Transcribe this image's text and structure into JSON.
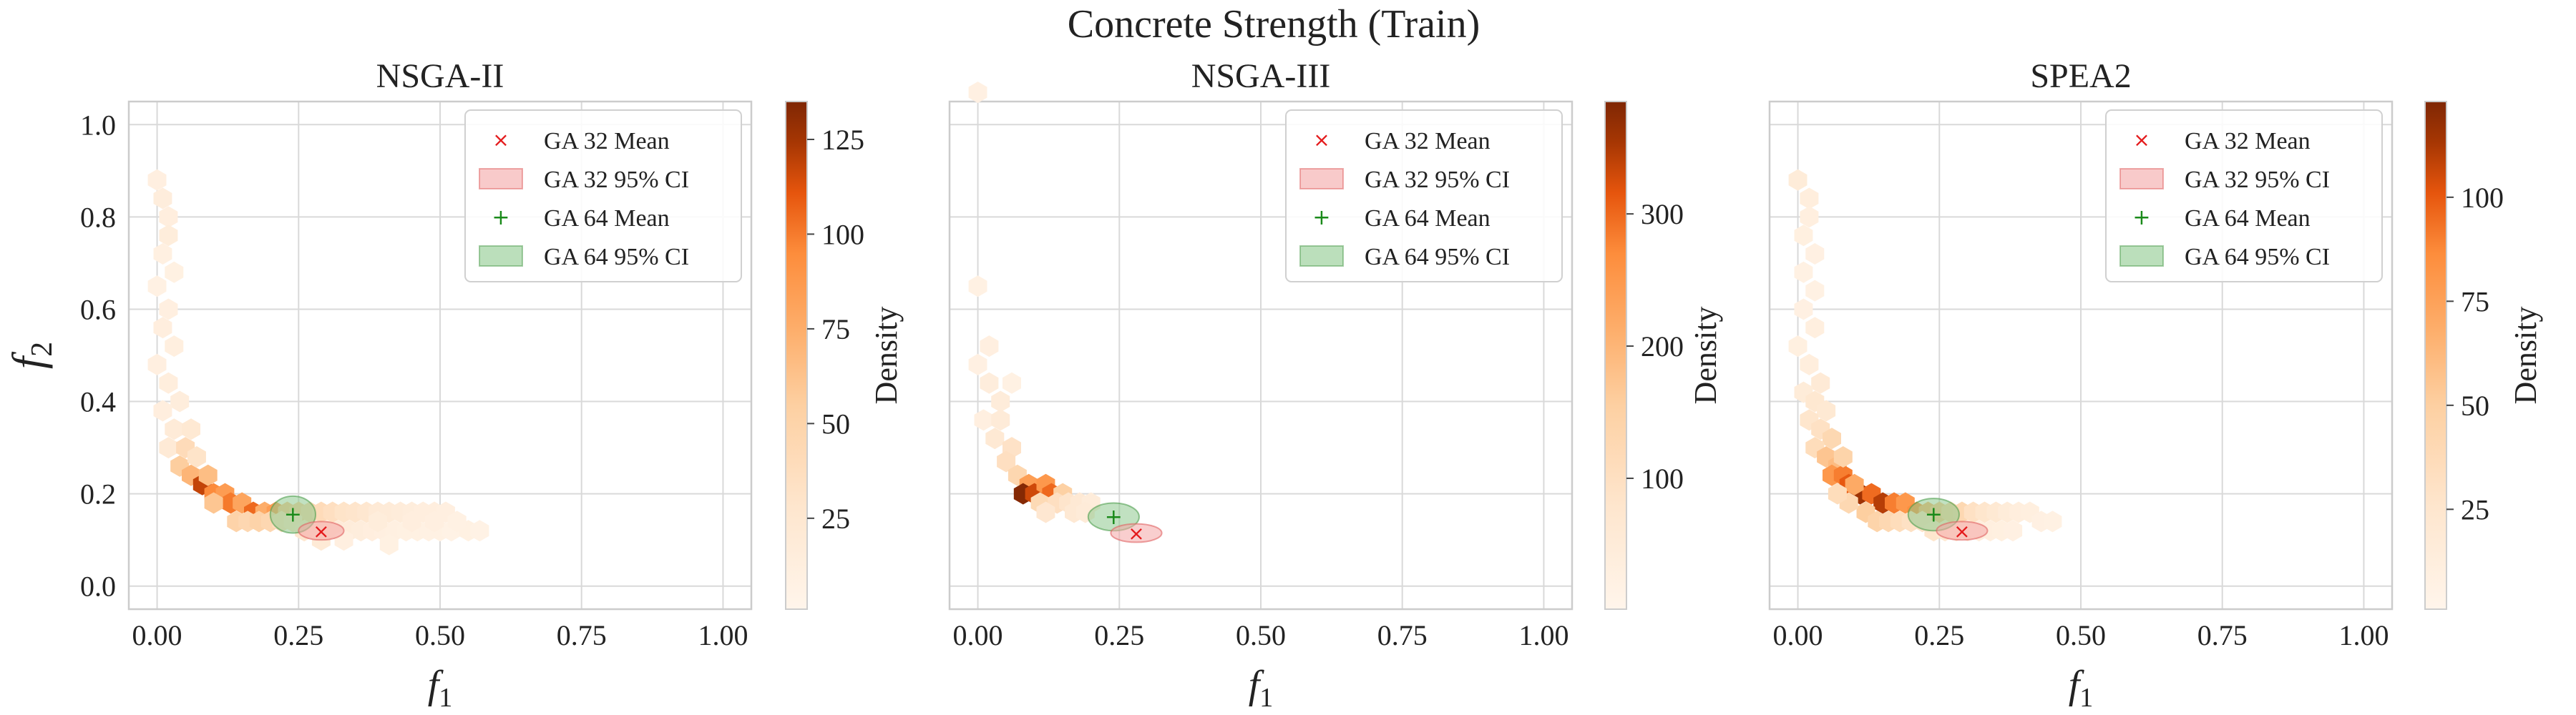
{
  "figure": {
    "title": "Concrete Strength (Train)"
  },
  "chart_data": [
    {
      "type": "hexbin",
      "title": "NSGA-II",
      "xlabel": "f1",
      "ylabel": "f2",
      "xlim": [
        -0.05,
        1.05
      ],
      "ylim": [
        -0.05,
        1.05
      ],
      "xticks": [
        "0.00",
        "0.25",
        "0.50",
        "0.75",
        "1.00"
      ],
      "yticks": [
        "0.0",
        "0.2",
        "0.4",
        "0.6",
        "0.8",
        "1.0"
      ],
      "grid": true,
      "colormap": "Oranges",
      "colorbar": {
        "label": "Density",
        "range": [
          1,
          135
        ],
        "ticks": [
          "25",
          "50",
          "75",
          "100",
          "125"
        ]
      },
      "legend": {
        "position": "top-right",
        "entries": [
          "GA 32 Mean",
          "GA 32 95% CI",
          "GA 64 Mean",
          "GA 64 95% CI"
        ]
      },
      "bins": [
        [
          0.0,
          0.88,
          10
        ],
        [
          0.01,
          0.84,
          14
        ],
        [
          0.02,
          0.8,
          12
        ],
        [
          0.02,
          0.76,
          15
        ],
        [
          0.01,
          0.72,
          9
        ],
        [
          0.03,
          0.68,
          8
        ],
        [
          0.0,
          0.65,
          7
        ],
        [
          0.02,
          0.6,
          10
        ],
        [
          0.01,
          0.56,
          12
        ],
        [
          0.03,
          0.52,
          11
        ],
        [
          0.0,
          0.48,
          10
        ],
        [
          0.02,
          0.44,
          13
        ],
        [
          0.04,
          0.4,
          14
        ],
        [
          0.01,
          0.38,
          12
        ],
        [
          0.03,
          0.34,
          18
        ],
        [
          0.06,
          0.34,
          22
        ],
        [
          0.02,
          0.3,
          20
        ],
        [
          0.05,
          0.3,
          40
        ],
        [
          0.04,
          0.26,
          55
        ],
        [
          0.06,
          0.24,
          70
        ],
        [
          0.08,
          0.22,
          118
        ],
        [
          0.1,
          0.2,
          95
        ],
        [
          0.12,
          0.2,
          85
        ],
        [
          0.13,
          0.18,
          100
        ],
        [
          0.15,
          0.18,
          80
        ],
        [
          0.17,
          0.16,
          105
        ],
        [
          0.19,
          0.16,
          75
        ],
        [
          0.21,
          0.16,
          85
        ],
        [
          0.23,
          0.16,
          60
        ],
        [
          0.25,
          0.16,
          55
        ],
        [
          0.27,
          0.16,
          45
        ],
        [
          0.29,
          0.16,
          40
        ],
        [
          0.31,
          0.16,
          35
        ],
        [
          0.33,
          0.16,
          30
        ],
        [
          0.35,
          0.16,
          28
        ],
        [
          0.37,
          0.16,
          25
        ],
        [
          0.39,
          0.16,
          20
        ],
        [
          0.41,
          0.16,
          18
        ],
        [
          0.43,
          0.16,
          16
        ],
        [
          0.45,
          0.16,
          14
        ],
        [
          0.47,
          0.16,
          12
        ],
        [
          0.49,
          0.16,
          12
        ],
        [
          0.51,
          0.16,
          10
        ],
        [
          0.1,
          0.18,
          60
        ],
        [
          0.14,
          0.14,
          50
        ],
        [
          0.16,
          0.14,
          45
        ],
        [
          0.18,
          0.14,
          50
        ],
        [
          0.2,
          0.14,
          45
        ],
        [
          0.22,
          0.14,
          35
        ],
        [
          0.24,
          0.14,
          30
        ],
        [
          0.26,
          0.12,
          25
        ],
        [
          0.28,
          0.12,
          22
        ],
        [
          0.3,
          0.12,
          20
        ],
        [
          0.32,
          0.12,
          18
        ],
        [
          0.34,
          0.12,
          16
        ],
        [
          0.36,
          0.12,
          14
        ],
        [
          0.38,
          0.12,
          12
        ],
        [
          0.4,
          0.12,
          10
        ],
        [
          0.42,
          0.12,
          9
        ],
        [
          0.44,
          0.12,
          8
        ],
        [
          0.46,
          0.12,
          8
        ],
        [
          0.48,
          0.12,
          7
        ],
        [
          0.5,
          0.12,
          7
        ],
        [
          0.52,
          0.12,
          6
        ],
        [
          0.55,
          0.12,
          8
        ],
        [
          0.57,
          0.12,
          6
        ],
        [
          0.29,
          0.1,
          20
        ],
        [
          0.33,
          0.1,
          10
        ],
        [
          0.41,
          0.09,
          8
        ],
        [
          0.39,
          0.14,
          15
        ],
        [
          0.45,
          0.14,
          12
        ],
        [
          0.49,
          0.14,
          10
        ],
        [
          0.53,
          0.14,
          7
        ],
        [
          0.07,
          0.28,
          30
        ],
        [
          0.09,
          0.24,
          65
        ]
      ],
      "ga32": {
        "mean": [
          0.29,
          0.12
        ],
        "ci_rx": 0.04,
        "ci_ry": 0.02
      },
      "ga64": {
        "mean": [
          0.24,
          0.155
        ],
        "ci_rx": 0.04,
        "ci_ry": 0.04
      }
    },
    {
      "type": "hexbin",
      "title": "NSGA-III",
      "xlabel": "f1",
      "ylabel": "",
      "xlim": [
        -0.05,
        1.05
      ],
      "ylim": [
        -0.05,
        1.05
      ],
      "xticks": [
        "0.00",
        "0.25",
        "0.50",
        "0.75",
        "1.00"
      ],
      "yticks": [],
      "grid": true,
      "colormap": "Oranges",
      "colorbar": {
        "label": "Density",
        "range": [
          1,
          385
        ],
        "ticks": [
          "100",
          "200",
          "300"
        ]
      },
      "legend": {
        "position": "top-right",
        "entries": [
          "GA 32 Mean",
          "GA 32 95% CI",
          "GA 64 Mean",
          "GA 64 95% CI"
        ]
      },
      "bins": [
        [
          0.0,
          1.07,
          25
        ],
        [
          0.0,
          0.65,
          20
        ],
        [
          0.02,
          0.52,
          30
        ],
        [
          0.0,
          0.48,
          25
        ],
        [
          0.02,
          0.44,
          40
        ],
        [
          0.04,
          0.4,
          45
        ],
        [
          0.01,
          0.36,
          30
        ],
        [
          0.04,
          0.36,
          50
        ],
        [
          0.06,
          0.44,
          20
        ],
        [
          0.03,
          0.32,
          60
        ],
        [
          0.06,
          0.3,
          90
        ],
        [
          0.05,
          0.27,
          100
        ],
        [
          0.07,
          0.24,
          130
        ],
        [
          0.09,
          0.22,
          240
        ],
        [
          0.08,
          0.2,
          380
        ],
        [
          0.1,
          0.2,
          330
        ],
        [
          0.12,
          0.22,
          250
        ],
        [
          0.13,
          0.2,
          300
        ],
        [
          0.15,
          0.2,
          150
        ],
        [
          0.11,
          0.18,
          120
        ],
        [
          0.14,
          0.18,
          100
        ],
        [
          0.16,
          0.18,
          80
        ],
        [
          0.18,
          0.18,
          60
        ],
        [
          0.2,
          0.18,
          45
        ],
        [
          0.17,
          0.16,
          60
        ],
        [
          0.19,
          0.16,
          50
        ],
        [
          0.12,
          0.16,
          70
        ]
      ],
      "ga32": {
        "mean": [
          0.28,
          0.115
        ],
        "ci_rx": 0.045,
        "ci_ry": 0.02
      },
      "ga64": {
        "mean": [
          0.24,
          0.15
        ],
        "ci_rx": 0.045,
        "ci_ry": 0.03
      }
    },
    {
      "type": "hexbin",
      "title": "SPEA2",
      "xlabel": "f1",
      "ylabel": "",
      "xlim": [
        -0.05,
        1.05
      ],
      "ylim": [
        -0.05,
        1.05
      ],
      "xticks": [
        "0.00",
        "0.25",
        "0.50",
        "0.75",
        "1.00"
      ],
      "yticks": [],
      "grid": true,
      "colormap": "Oranges",
      "colorbar": {
        "label": "Density",
        "range": [
          1,
          123
        ],
        "ticks": [
          "25",
          "50",
          "75",
          "100"
        ]
      },
      "legend": {
        "position": "top-right",
        "entries": [
          "GA 32 Mean",
          "GA 32 95% CI",
          "GA 64 Mean",
          "GA 64 95% CI"
        ]
      },
      "bins": [
        [
          0.0,
          0.88,
          15
        ],
        [
          0.02,
          0.84,
          12
        ],
        [
          0.02,
          0.8,
          10
        ],
        [
          0.01,
          0.76,
          9
        ],
        [
          0.03,
          0.72,
          8
        ],
        [
          0.01,
          0.68,
          7
        ],
        [
          0.03,
          0.64,
          7
        ],
        [
          0.01,
          0.6,
          8
        ],
        [
          0.03,
          0.56,
          10
        ],
        [
          0.0,
          0.52,
          9
        ],
        [
          0.02,
          0.48,
          12
        ],
        [
          0.04,
          0.44,
          18
        ],
        [
          0.01,
          0.42,
          15
        ],
        [
          0.03,
          0.4,
          22
        ],
        [
          0.05,
          0.38,
          20
        ],
        [
          0.02,
          0.36,
          25
        ],
        [
          0.04,
          0.34,
          30
        ],
        [
          0.06,
          0.32,
          40
        ],
        [
          0.03,
          0.3,
          35
        ],
        [
          0.05,
          0.28,
          55
        ],
        [
          0.07,
          0.26,
          60
        ],
        [
          0.06,
          0.24,
          80
        ],
        [
          0.08,
          0.24,
          90
        ],
        [
          0.09,
          0.22,
          100
        ],
        [
          0.11,
          0.2,
          115
        ],
        [
          0.13,
          0.2,
          95
        ],
        [
          0.15,
          0.18,
          110
        ],
        [
          0.17,
          0.18,
          90
        ],
        [
          0.19,
          0.18,
          80
        ],
        [
          0.21,
          0.16,
          85
        ],
        [
          0.23,
          0.16,
          65
        ],
        [
          0.25,
          0.16,
          55
        ],
        [
          0.27,
          0.16,
          45
        ],
        [
          0.29,
          0.16,
          40
        ],
        [
          0.31,
          0.16,
          30
        ],
        [
          0.33,
          0.16,
          25
        ],
        [
          0.35,
          0.16,
          20
        ],
        [
          0.37,
          0.16,
          15
        ],
        [
          0.39,
          0.16,
          12
        ],
        [
          0.41,
          0.16,
          10
        ],
        [
          0.43,
          0.14,
          8
        ],
        [
          0.45,
          0.14,
          7
        ],
        [
          0.12,
          0.16,
          50
        ],
        [
          0.14,
          0.14,
          45
        ],
        [
          0.16,
          0.14,
          40
        ],
        [
          0.18,
          0.14,
          35
        ],
        [
          0.2,
          0.14,
          30
        ],
        [
          0.22,
          0.14,
          28
        ],
        [
          0.24,
          0.12,
          25
        ],
        [
          0.26,
          0.12,
          20
        ],
        [
          0.28,
          0.12,
          18
        ],
        [
          0.3,
          0.12,
          16
        ],
        [
          0.32,
          0.12,
          12
        ],
        [
          0.34,
          0.12,
          10
        ],
        [
          0.36,
          0.12,
          9
        ],
        [
          0.38,
          0.12,
          8
        ],
        [
          0.08,
          0.28,
          45
        ],
        [
          0.1,
          0.22,
          70
        ],
        [
          0.09,
          0.18,
          40
        ],
        [
          0.07,
          0.2,
          35
        ]
      ],
      "ga32": {
        "mean": [
          0.29,
          0.12
        ],
        "ci_rx": 0.045,
        "ci_ry": 0.02
      },
      "ga64": {
        "mean": [
          0.24,
          0.155
        ],
        "ci_rx": 0.045,
        "ci_ry": 0.035
      }
    }
  ],
  "colors": {
    "ga32_marker": "#e41a1c",
    "ga32_ci_fill": "#f4a6a6",
    "ga64_marker": "#1a8a1a",
    "ga64_ci_fill": "#8ec98e",
    "grid": "#d9d9d9",
    "axis": "#cccccc"
  }
}
